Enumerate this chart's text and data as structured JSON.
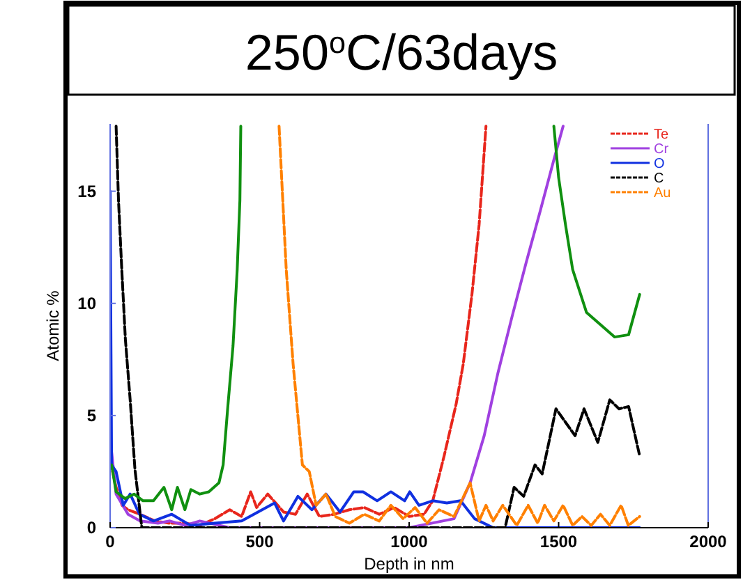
{
  "chart_data": {
    "type": "line",
    "title": "250$^{o}$C/63days",
    "xlabel": "Depth in nm",
    "ylabel": "Atomic %",
    "xlim": [
      0,
      2000
    ],
    "ylim": [
      0,
      18
    ],
    "xticks": [
      0,
      500,
      1000,
      1500,
      2000
    ],
    "yticks": [
      0,
      5,
      10,
      15
    ],
    "grid": false,
    "legend": "top right",
    "marker": "none",
    "series": [
      {
        "name": "Te",
        "color": "#e8261c",
        "line_style": "dashed",
        "x": [
          0,
          20,
          40,
          60,
          100,
          150,
          200,
          250,
          300,
          350,
          400,
          440,
          470,
          490,
          527,
          580,
          620,
          659,
          700,
          750,
          800,
          850,
          900,
          950,
          1000,
          1050,
          1079,
          1117,
          1157,
          1181,
          1210,
          1234,
          1257
        ],
        "values": [
          3,
          1.8,
          1.0,
          0.8,
          0.6,
          0.3,
          0.2,
          0.2,
          0.1,
          0.4,
          0.8,
          0.5,
          1.6,
          0.9,
          1.5,
          0.7,
          0.6,
          1.5,
          0.5,
          0.6,
          0.8,
          0.9,
          0.6,
          0.9,
          0.5,
          0.6,
          1.2,
          3.2,
          5.5,
          7.3,
          10.4,
          13.5,
          17.9
        ]
      },
      {
        "name": "Cr",
        "color": "#a040e0",
        "line_style": "solid",
        "x": [
          0,
          20,
          60,
          100,
          160,
          200,
          250,
          300,
          400,
          600,
          800,
          1000,
          1150,
          1204,
          1251,
          1297,
          1344,
          1391,
          1438,
          1484,
          1515
        ],
        "values": [
          4,
          1.5,
          0.6,
          0.3,
          0.2,
          0.3,
          0.1,
          0.3,
          0,
          0,
          0,
          0,
          0.4,
          2.0,
          4.1,
          6.9,
          9.4,
          11.8,
          14.1,
          16.4,
          17.9
        ]
      },
      {
        "name": "O",
        "color": "#1030e0",
        "line_style": "solid",
        "x": [
          0,
          5,
          20,
          44,
          67,
          98,
          145,
          206,
          269,
          350,
          440,
          550,
          580,
          628,
          675,
          722,
          769,
          815,
          846,
          893,
          939,
          985,
          1002,
          1033,
          1079,
          1126,
          1172,
          1219,
          1281,
          1500,
          1771
        ],
        "values": [
          15,
          2.8,
          2.5,
          1.0,
          1.5,
          0.6,
          0.3,
          0.6,
          0.1,
          0.2,
          0.3,
          1.1,
          0.3,
          1.4,
          0.8,
          1.5,
          0.7,
          1.6,
          1.6,
          1.2,
          1.6,
          1.2,
          1.6,
          1.0,
          1.2,
          1.1,
          1.2,
          0.4,
          0,
          0,
          0
        ]
      },
      {
        "name": "C",
        "color": "#000000",
        "line_style": "dashed",
        "x": [
          20,
          28,
          39,
          51,
          67,
          83,
          106,
          600,
          1000,
          1321,
          1351,
          1383,
          1421,
          1445,
          1491,
          1555,
          1585,
          1631,
          1671,
          1702,
          1734,
          1771
        ],
        "values": [
          17.9,
          14.6,
          11.5,
          8.4,
          5.7,
          2.6,
          0,
          0,
          0,
          0,
          1.8,
          1.4,
          2.8,
          2.4,
          5.3,
          4.1,
          5.3,
          3.8,
          5.7,
          5.3,
          5.4,
          3.2
        ]
      },
      {
        "name": "Au",
        "color": "#ff8000",
        "line_style": "dashed",
        "x": [
          565,
          589,
          612,
          643,
          666,
          689,
          722,
          753,
          800,
          850,
          900,
          939,
          980,
          1020,
          1060,
          1100,
          1150,
          1204,
          1234,
          1257,
          1281,
          1313,
          1360,
          1398,
          1430,
          1453,
          1484,
          1515,
          1547,
          1578,
          1609,
          1640,
          1671,
          1709,
          1733,
          1771
        ],
        "values": [
          17.9,
          11.5,
          7.3,
          2.8,
          2.5,
          1.0,
          1.5,
          0.5,
          0.2,
          0.6,
          0.3,
          1.0,
          0.4,
          0.9,
          0.2,
          0.8,
          0.5,
          2.0,
          0.3,
          1.0,
          0.3,
          1.0,
          0.1,
          1.0,
          0.2,
          1.0,
          0.3,
          1.0,
          0.1,
          0.5,
          0.1,
          0.6,
          0.1,
          1.0,
          0.1,
          0.5
        ]
      },
      {
        "color": "#109010",
        "line_style": "solid",
        "x": [
          5,
          20,
          50,
          80,
          110,
          145,
          180,
          206,
          225,
          250,
          270,
          300,
          330,
          364,
          378,
          393,
          411,
          425,
          434,
          437,
          960,
          1484,
          1500,
          1523,
          1547,
          1593,
          1687,
          1734,
          1771
        ],
        "values": [
          2.8,
          1.6,
          1.3,
          1.5,
          1.2,
          1.2,
          1.8,
          0.8,
          1.8,
          0.8,
          1.7,
          1.5,
          1.6,
          2.0,
          2.8,
          5.3,
          8.1,
          11.5,
          14.6,
          17.9,
          null,
          17.9,
          15.6,
          13.5,
          11.5,
          9.6,
          8.5,
          8.6,
          10.4
        ]
      }
    ]
  }
}
